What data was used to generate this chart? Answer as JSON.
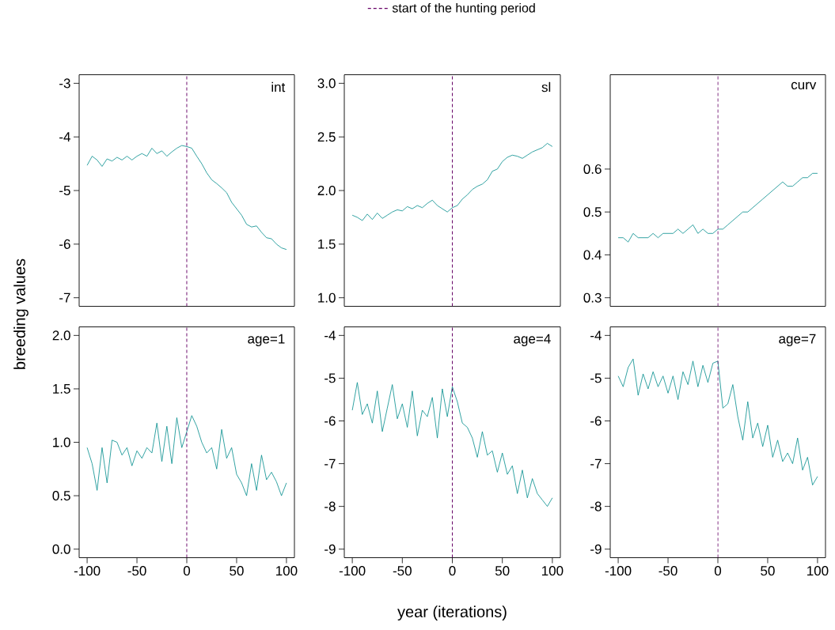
{
  "chart_data": [
    {
      "type": "line",
      "title": "int",
      "ylabel": "breeding values",
      "tick_labels": "y",
      "xlim": [
        -108,
        108
      ],
      "ylim": [
        -7.16,
        -2.84
      ],
      "yticks": [
        -7,
        -6,
        -5,
        -4,
        -3
      ],
      "x": [
        -100,
        -95,
        -90,
        -85,
        -80,
        -75,
        -70,
        -65,
        -60,
        -55,
        -50,
        -45,
        -40,
        -35,
        -30,
        -25,
        -20,
        -15,
        -10,
        -5,
        0,
        5,
        10,
        15,
        20,
        25,
        30,
        35,
        40,
        45,
        50,
        55,
        60,
        65,
        70,
        75,
        80,
        85,
        90,
        95,
        100
      ],
      "series": [
        {
          "color": "#008b8b",
          "values": [
            -4.53,
            -4.36,
            -4.43,
            -4.55,
            -4.41,
            -4.45,
            -4.38,
            -4.43,
            -4.36,
            -4.43,
            -4.36,
            -4.31,
            -4.36,
            -4.21,
            -4.31,
            -4.26,
            -4.36,
            -4.28,
            -4.21,
            -4.16,
            -4.18,
            -4.21,
            -4.36,
            -4.5,
            -4.67,
            -4.8,
            -4.87,
            -4.95,
            -5.04,
            -5.22,
            -5.34,
            -5.46,
            -5.63,
            -5.68,
            -5.66,
            -5.78,
            -5.88,
            -5.9,
            -6.0,
            -6.07,
            -6.1
          ]
        }
      ],
      "ref_lines": [
        {
          "axis": "x",
          "value": 0,
          "color": "#660066",
          "line_style": "dashed"
        }
      ]
    },
    {
      "type": "line",
      "title": "sl",
      "tick_labels": "y",
      "legend": "top",
      "xlim": [
        -108,
        108
      ],
      "ylim": [
        0.92,
        3.08
      ],
      "yticks": [
        {
          "value": 1,
          "label": "1.0"
        },
        1.5,
        {
          "value": 2,
          "label": "2.0"
        },
        2.5,
        {
          "value": 3,
          "label": "3.0"
        }
      ],
      "x": [
        -100,
        -95,
        -90,
        -85,
        -80,
        -75,
        -70,
        -65,
        -60,
        -55,
        -50,
        -45,
        -40,
        -35,
        -30,
        -25,
        -20,
        -15,
        -10,
        -5,
        0,
        5,
        10,
        15,
        20,
        25,
        30,
        35,
        40,
        45,
        50,
        55,
        60,
        65,
        70,
        75,
        80,
        85,
        90,
        95,
        100
      ],
      "series": [
        {
          "color": "#008b8b",
          "values": [
            1.77,
            1.75,
            1.72,
            1.78,
            1.73,
            1.79,
            1.74,
            1.77,
            1.8,
            1.82,
            1.81,
            1.85,
            1.83,
            1.86,
            1.84,
            1.88,
            1.91,
            1.86,
            1.83,
            1.8,
            1.84,
            1.86,
            1.92,
            1.96,
            2.01,
            2.04,
            2.06,
            2.1,
            2.18,
            2.2,
            2.27,
            2.31,
            2.33,
            2.32,
            2.3,
            2.33,
            2.36,
            2.38,
            2.4,
            2.44,
            2.41
          ]
        }
      ],
      "ref_lines": [
        {
          "axis": "x",
          "value": 0,
          "label": "start of the hunting period",
          "color": "#660066",
          "line_style": "dashed"
        }
      ]
    },
    {
      "type": "line",
      "title": "curv",
      "tick_labels": "y",
      "xlim": [
        -108,
        108
      ],
      "ylim": [
        0.28,
        0.82
      ],
      "yticks": [
        0.3,
        0.4,
        0.5,
        0.6
      ],
      "x": [
        -100,
        -95,
        -90,
        -85,
        -80,
        -75,
        -70,
        -65,
        -60,
        -55,
        -50,
        -45,
        -40,
        -35,
        -30,
        -25,
        -20,
        -15,
        -10,
        -5,
        0,
        5,
        10,
        15,
        20,
        25,
        30,
        35,
        40,
        45,
        50,
        55,
        60,
        65,
        70,
        75,
        80,
        85,
        90,
        95,
        100
      ],
      "series": [
        {
          "color": "#008b8b",
          "values": [
            0.44,
            0.44,
            0.43,
            0.45,
            0.44,
            0.44,
            0.44,
            0.45,
            0.44,
            0.45,
            0.45,
            0.45,
            0.46,
            0.45,
            0.46,
            0.47,
            0.45,
            0.46,
            0.45,
            0.45,
            0.46,
            0.46,
            0.47,
            0.48,
            0.49,
            0.5,
            0.5,
            0.51,
            0.52,
            0.53,
            0.54,
            0.55,
            0.56,
            0.57,
            0.56,
            0.56,
            0.57,
            0.58,
            0.58,
            0.59,
            0.59
          ]
        }
      ],
      "ref_lines": [
        {
          "axis": "x",
          "value": 0,
          "color": "#660066",
          "line_style": "dashed"
        }
      ]
    },
    {
      "type": "line",
      "title": "age=1",
      "xlim": [
        -108,
        108
      ],
      "xticks": [
        -100,
        -50,
        0,
        50,
        100
      ],
      "ylim": [
        -0.08,
        2.08
      ],
      "yticks": [
        {
          "value": 0,
          "label": "0.0"
        },
        0.5,
        {
          "value": 1,
          "label": "1.0"
        },
        1.5,
        {
          "value": 2,
          "label": "2.0"
        }
      ],
      "x": [
        -100,
        -95,
        -90,
        -85,
        -80,
        -75,
        -70,
        -65,
        -60,
        -55,
        -50,
        -45,
        -40,
        -35,
        -30,
        -25,
        -20,
        -15,
        -10,
        -5,
        0,
        5,
        10,
        15,
        20,
        25,
        30,
        35,
        40,
        45,
        50,
        55,
        60,
        65,
        70,
        75,
        80,
        85,
        90,
        95,
        100
      ],
      "series": [
        {
          "color": "#008b8b",
          "values": [
            0.95,
            0.8,
            0.55,
            0.95,
            0.62,
            1.02,
            1.0,
            0.88,
            0.95,
            0.78,
            0.92,
            0.85,
            0.95,
            0.9,
            1.18,
            0.82,
            1.15,
            0.8,
            1.23,
            0.95,
            1.1,
            1.25,
            1.15,
            1.0,
            0.9,
            0.95,
            0.75,
            1.12,
            0.85,
            0.95,
            0.7,
            0.62,
            0.5,
            0.8,
            0.55,
            0.88,
            0.65,
            0.72,
            0.63,
            0.5,
            0.62
          ]
        }
      ],
      "ref_lines": [
        {
          "axis": "x",
          "value": 0,
          "color": "#660066",
          "line_style": "dashed"
        }
      ]
    },
    {
      "type": "line",
      "title": "age=4",
      "xlabel": "year (iterations)",
      "xlim": [
        -108,
        108
      ],
      "xticks": [
        -100,
        -50,
        0,
        50,
        100
      ],
      "ylim": [
        -9.2,
        -3.8
      ],
      "yticks": [
        -9,
        -8,
        -7,
        -6,
        -5,
        -4
      ],
      "x": [
        -100,
        -95,
        -90,
        -85,
        -80,
        -75,
        -70,
        -65,
        -60,
        -55,
        -50,
        -45,
        -40,
        -35,
        -30,
        -25,
        -20,
        -15,
        -10,
        -5,
        0,
        5,
        10,
        15,
        20,
        25,
        30,
        35,
        40,
        45,
        50,
        55,
        60,
        65,
        70,
        75,
        80,
        85,
        90,
        95,
        100
      ],
      "series": [
        {
          "color": "#008b8b",
          "values": [
            -5.75,
            -5.1,
            -5.85,
            -5.6,
            -6.05,
            -5.3,
            -6.25,
            -5.7,
            -5.15,
            -5.95,
            -5.6,
            -6.15,
            -5.3,
            -6.35,
            -5.75,
            -5.9,
            -5.45,
            -6.4,
            -5.25,
            -5.9,
            -5.2,
            -5.55,
            -6.05,
            -6.15,
            -6.4,
            -6.85,
            -6.25,
            -6.8,
            -6.7,
            -7.2,
            -6.75,
            -7.25,
            -7.05,
            -7.7,
            -7.15,
            -7.8,
            -7.35,
            -7.7,
            -7.85,
            -8.0,
            -7.8
          ]
        }
      ],
      "ref_lines": [
        {
          "axis": "x",
          "value": 0,
          "color": "#660066",
          "line_style": "dashed"
        }
      ]
    },
    {
      "type": "line",
      "title": "age=7",
      "xlim": [
        -108,
        108
      ],
      "xticks": [
        -100,
        -50,
        0,
        50,
        100
      ],
      "ylim": [
        -9.2,
        -3.8
      ],
      "yticks": [
        -9,
        -8,
        -7,
        -6,
        -5,
        -4
      ],
      "x": [
        -100,
        -95,
        -90,
        -85,
        -80,
        -75,
        -70,
        -65,
        -60,
        -55,
        -50,
        -45,
        -40,
        -35,
        -30,
        -25,
        -20,
        -15,
        -10,
        -5,
        0,
        5,
        10,
        15,
        20,
        25,
        30,
        35,
        40,
        45,
        50,
        55,
        60,
        65,
        70,
        75,
        80,
        85,
        90,
        95,
        100
      ],
      "series": [
        {
          "color": "#008b8b",
          "values": [
            -4.95,
            -5.2,
            -4.75,
            -4.55,
            -5.4,
            -4.9,
            -5.25,
            -4.85,
            -5.2,
            -4.95,
            -5.35,
            -4.95,
            -5.5,
            -4.85,
            -5.15,
            -4.6,
            -5.2,
            -4.7,
            -5.1,
            -4.65,
            -4.6,
            -5.7,
            -5.6,
            -5.15,
            -5.9,
            -6.45,
            -5.55,
            -6.4,
            -6.05,
            -6.6,
            -6.1,
            -6.85,
            -6.45,
            -6.95,
            -6.75,
            -7.0,
            -6.4,
            -7.15,
            -6.85,
            -7.5,
            -7.3
          ]
        }
      ],
      "ref_lines": [
        {
          "axis": "x",
          "value": 0,
          "color": "#660066",
          "line_style": "dashed"
        }
      ]
    }
  ]
}
